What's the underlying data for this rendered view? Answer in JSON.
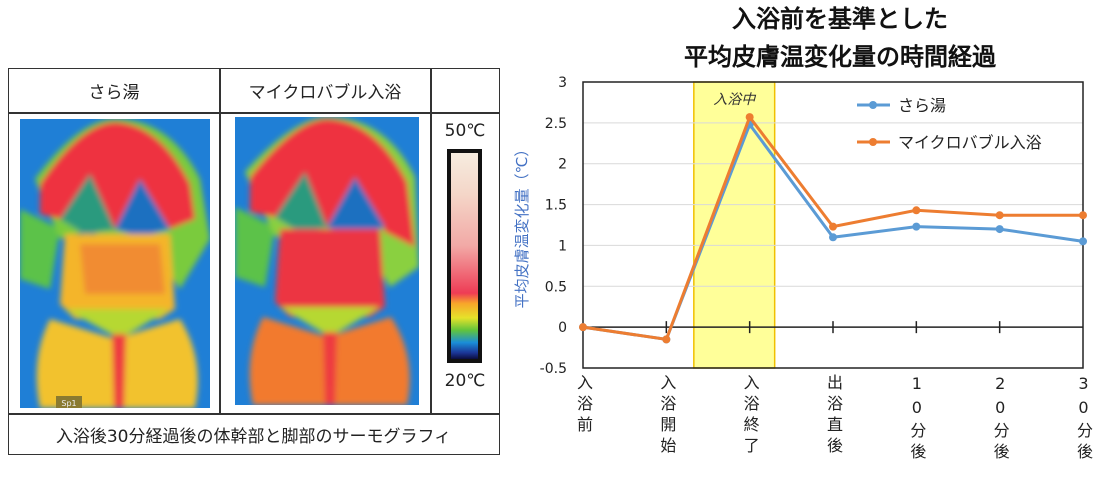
{
  "thermography": {
    "col1_header": "さら湯",
    "col2_header": "マイクロバブル入浴",
    "scale_max": "50℃",
    "scale_min": "20℃",
    "spot_label": "Sp1",
    "caption": "入浴後30分経過後の体幹部と脚部のサーモグラフィ"
  },
  "chart_data": {
    "type": "line",
    "title": [
      "入浴前を基準とした",
      "平均皮膚温変化量の時間経過"
    ],
    "ylabel": "平均皮膚温変化量（℃）",
    "categories": [
      "入浴前",
      "入浴開始",
      "入浴終了",
      "出浴直後",
      "10分後",
      "20分後",
      "30分後"
    ],
    "ylim": [
      -0.5,
      3
    ],
    "yticks": [
      "3",
      "2.5",
      "2",
      "1.5",
      "1",
      "0.5",
      "0",
      "-0.5"
    ],
    "grid": true,
    "legend": "top-right",
    "highlight": {
      "label": "入浴中",
      "from": "入浴開始",
      "to": "入浴終了",
      "color": "#ffff99"
    },
    "series": [
      {
        "name": "さら湯",
        "color": "#5b9bd5",
        "values": [
          0,
          -0.15,
          2.48,
          1.1,
          1.23,
          1.2,
          1.05
        ]
      },
      {
        "name": "マイクロバブル入浴",
        "color": "#ed7d31",
        "values": [
          0,
          -0.15,
          2.57,
          1.23,
          1.43,
          1.37,
          1.37
        ]
      }
    ]
  }
}
